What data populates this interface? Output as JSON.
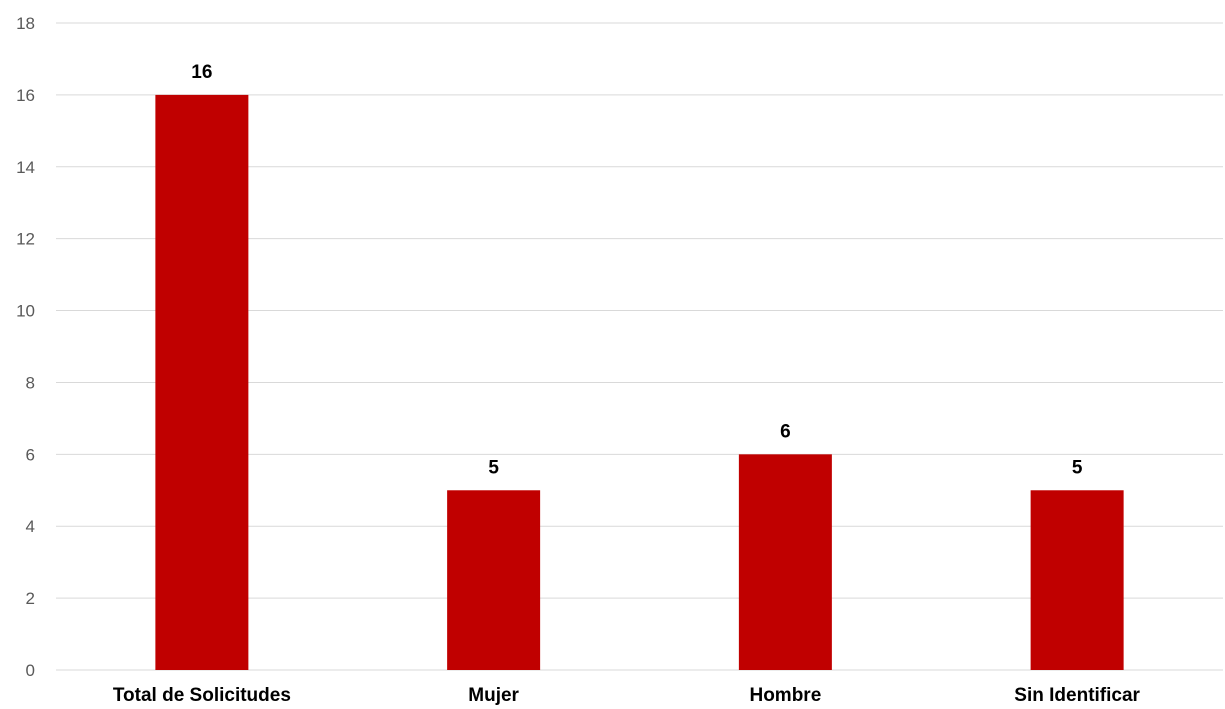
{
  "chart_data": {
    "type": "bar",
    "categories": [
      "Total de Solicitudes",
      "Mujer",
      "Hombre",
      "Sin Identificar"
    ],
    "values": [
      16,
      5,
      6,
      5
    ],
    "data_labels": [
      "16",
      "5",
      "6",
      "5"
    ],
    "title": "",
    "xlabel": "",
    "ylabel": "",
    "ylim": [
      0,
      18
    ],
    "yticks": [
      "0",
      "2",
      "4",
      "6",
      "8",
      "10",
      "12",
      "14",
      "16",
      "18"
    ],
    "grid": true,
    "legend": "none",
    "bar_color": "#C00000"
  }
}
